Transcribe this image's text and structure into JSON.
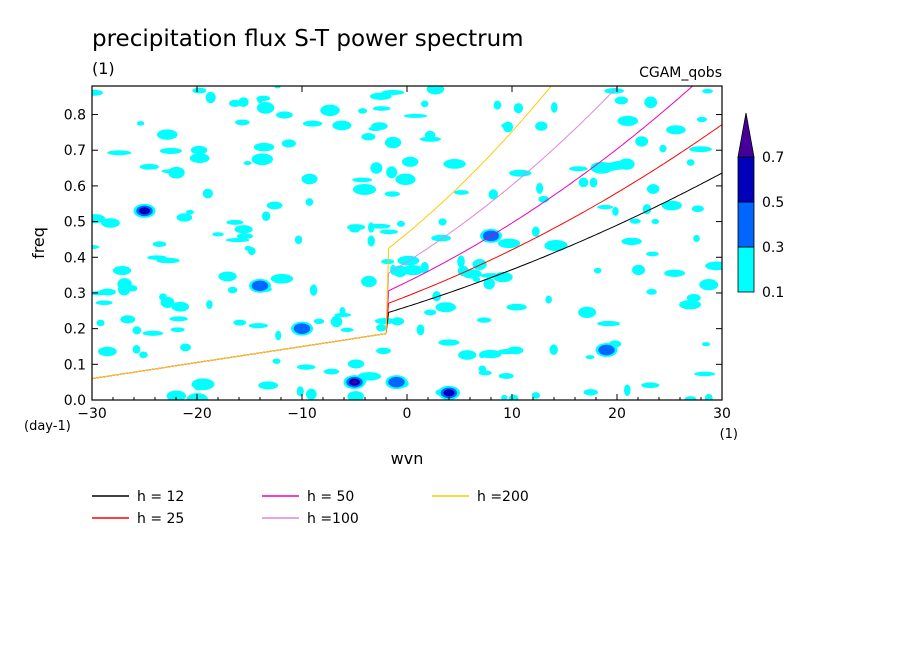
{
  "chart_data": {
    "type": "contour",
    "title": "precipitation flux S-T power spectrum",
    "title_units": "(1)",
    "case_label": "CGAM_qobs",
    "xlabel": "wvn",
    "ylabel": "freq",
    "x_units": "(1)",
    "y_units": "(day-1)",
    "xlim": [
      -30,
      30
    ],
    "ylim": [
      0,
      0.88
    ],
    "x_ticks": [
      -30,
      -20,
      -10,
      0,
      10,
      20,
      30
    ],
    "y_ticks": [
      0.0,
      0.1,
      0.2,
      0.3,
      0.4,
      0.5,
      0.6,
      0.7,
      0.8
    ],
    "x_tick_labels": [
      "−30",
      "−20",
      "−10",
      "0",
      "10",
      "20",
      "30"
    ],
    "y_tick_labels": [
      "0.0",
      "0.1",
      "0.2",
      "0.3",
      "0.4",
      "0.5",
      "0.6",
      "0.7",
      "0.8"
    ],
    "colorbar": {
      "levels": [
        "0.1",
        "0.3",
        "0.5",
        "0.7"
      ],
      "colors": [
        "#00ffff",
        "#0066ff",
        "#0000bb",
        "#440099"
      ]
    },
    "series": [
      {
        "name": "h = 12",
        "color": "#000000",
        "h": 12
      },
      {
        "name": "h = 25",
        "color": "#ff0000",
        "h": 25
      },
      {
        "name": "h = 50",
        "color": "#ee00bb",
        "h": 50
      },
      {
        "name": "h =100",
        "color": "#dd88dd",
        "h": 100
      },
      {
        "name": "h =200",
        "color": "#ffcc00",
        "h": 200
      }
    ],
    "patches": [
      {
        "x": -25,
        "y": 0.53,
        "level": 2
      },
      {
        "x": -14,
        "y": 0.32,
        "level": 1
      },
      {
        "x": -10,
        "y": 0.2,
        "level": 1
      },
      {
        "x": -5,
        "y": 0.05,
        "level": 3
      },
      {
        "x": -1,
        "y": 0.05,
        "level": 1
      },
      {
        "x": 4,
        "y": 0.02,
        "level": 2
      },
      {
        "x": 8,
        "y": 0.46,
        "level": 1
      },
      {
        "x": 19,
        "y": 0.14,
        "level": 1
      }
    ]
  }
}
